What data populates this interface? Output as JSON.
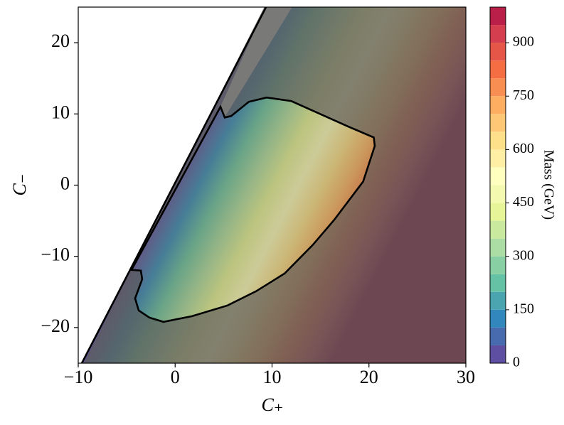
{
  "chart_data": {
    "type": "contour",
    "xlabel": "C₊",
    "ylabel": "C₋",
    "xlim": [
      -10,
      30
    ],
    "ylim": [
      -25,
      25
    ],
    "xticks": [
      {
        "value": -10,
        "label": "−10"
      },
      0,
      10,
      20,
      30
    ],
    "yticks": [
      {
        "value": -20,
        "label": "−20"
      },
      {
        "value": -10,
        "label": "−10"
      },
      0,
      10,
      20
    ],
    "boundary_line": {
      "x": [
        -9.63,
        9.38
      ],
      "y": [
        -25,
        25
      ]
    },
    "region": {
      "x": [
        4.68,
        5.12,
        5.78,
        7.6,
        9.45,
        12.0,
        14.95,
        17.9,
        20.5,
        20.6,
        19.4,
        16.4,
        14.2,
        11.3,
        8.35,
        5.4,
        1.74,
        -1.2,
        -2.66,
        -3.76,
        -4.13,
        -3.4,
        -3.54,
        -4.5
      ],
      "y": [
        11.0,
        9.5,
        9.7,
        11.7,
        12.3,
        11.8,
        10.0,
        8.2,
        6.7,
        5.5,
        0.5,
        -4.9,
        -8.4,
        -12.4,
        -14.9,
        -16.9,
        -18.4,
        -19.2,
        -18.6,
        -17.6,
        -15.9,
        -13.2,
        -12.0,
        -11.9
      ]
    },
    "colorbar": {
      "label": "Mass (GeV)",
      "levels": [
        0,
        50,
        100,
        150,
        200,
        250,
        300,
        350,
        400,
        450,
        500,
        550,
        600,
        650,
        700,
        750,
        800,
        850,
        900,
        950,
        1000
      ],
      "colors": [
        "#5e4fa2",
        "#486aae",
        "#3288bd",
        "#4ba5b1",
        "#66c2a5",
        "#88cfa4",
        "#abdda4",
        "#c8e99e",
        "#e6f598",
        "#f3fab0",
        "#ffffbf",
        "#feefa5",
        "#fee08b",
        "#fdc776",
        "#fdae61",
        "#f88e52",
        "#f46d43",
        "#e55649",
        "#d53e4f",
        "#b91f48"
      ],
      "ticks": [
        0,
        150,
        300,
        450,
        600,
        750,
        900
      ]
    }
  }
}
